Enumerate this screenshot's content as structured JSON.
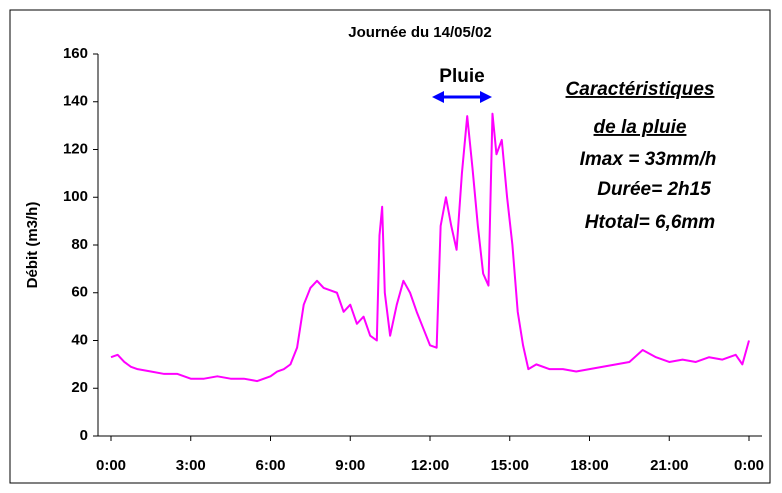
{
  "chart_data": {
    "type": "line",
    "title": "Journée du 14/05/02",
    "y_label": "Débit (m3/h)",
    "annotations": [
      "Pluie",
      "Caractéristiques ",
      "de la pluie",
      "Imax  = 33mm/h",
      "Durée= 2h15",
      "Htotal= 6,6mm"
    ],
    "x": [
      0,
      0.25,
      0.5,
      0.75,
      1,
      1.5,
      2,
      2.5,
      3,
      3.5,
      4,
      4.5,
      5,
      5.5,
      6,
      6.25,
      6.5,
      6.75,
      7,
      7.25,
      7.5,
      7.75,
      8,
      8.25,
      8.5,
      8.75,
      9,
      9.25,
      9.5,
      9.75,
      10,
      10.1,
      10.2,
      10.3,
      10.5,
      10.75,
      11,
      11.25,
      11.5,
      11.75,
      12,
      12.25,
      12.4,
      12.6,
      12.8,
      13,
      13.2,
      13.4,
      13.6,
      13.8,
      14,
      14.2,
      14.35,
      14.5,
      14.7,
      14.9,
      15.1,
      15.3,
      15.5,
      15.7,
      16,
      16.5,
      17,
      17.5,
      18,
      18.5,
      19,
      19.5,
      20,
      20.5,
      21,
      21.5,
      22,
      22.5,
      23,
      23.5,
      23.75,
      24
    ],
    "series": [
      {
        "name": "Débit",
        "color": "#ff00ff",
        "values": [
          33,
          34,
          31,
          29,
          28,
          27,
          26,
          26,
          24,
          24,
          25,
          24,
          24,
          23,
          25,
          27,
          28,
          30,
          37,
          55,
          62,
          65,
          62,
          61,
          60,
          52,
          55,
          47,
          50,
          42,
          40,
          84,
          96,
          60,
          42,
          55,
          65,
          60,
          52,
          45,
          38,
          37,
          88,
          100,
          88,
          78,
          110,
          134,
          112,
          88,
          68,
          63,
          135,
          118,
          124,
          100,
          80,
          52,
          38,
          28,
          30,
          28,
          28,
          27,
          28,
          29,
          30,
          31,
          36,
          33,
          31,
          32,
          31,
          33,
          32,
          34,
          30,
          40
        ]
      }
    ],
    "xlim": [
      0,
      24
    ],
    "xticks": [
      {
        "value": 0,
        "label": "0:00"
      },
      {
        "value": 3,
        "label": "3:00"
      },
      {
        "value": 6,
        "label": "6:00"
      },
      {
        "value": 9,
        "label": "9:00"
      },
      {
        "value": 12,
        "label": "12:00"
      },
      {
        "value": 15,
        "label": "15:00"
      },
      {
        "value": 18,
        "label": "18:00"
      },
      {
        "value": 21,
        "label": "21:00"
      },
      {
        "value": 24,
        "label": "0:00"
      }
    ],
    "ylim": [
      0,
      160
    ],
    "yticks": [
      0,
      20,
      40,
      60,
      80,
      100,
      120,
      140,
      160
    ],
    "grid": false
  }
}
